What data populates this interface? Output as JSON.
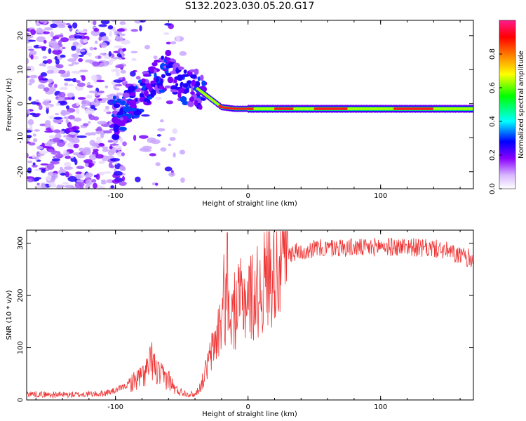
{
  "title": "S132.2023.030.05.20.G17",
  "chart_data": [
    {
      "type": "heatmap",
      "xlabel": "Height of straight line (km)",
      "ylabel": "Frequency (Hz)",
      "xlim": [
        -167,
        170
      ],
      "ylim": [
        -25,
        24.5
      ],
      "x_ticks": [
        -100,
        0,
        100
      ],
      "y_ticks": [
        -20,
        -10,
        0,
        10,
        20
      ],
      "description_points": {
        "ridge": [
          {
            "x": -100,
            "y": -5
          },
          {
            "x": -90,
            "y": -1
          },
          {
            "x": -80,
            "y": 3
          },
          {
            "x": -70,
            "y": 7
          },
          {
            "x": -60,
            "y": 10
          },
          {
            "x": -50,
            "y": 5
          },
          {
            "x": -40,
            "y": 5
          },
          {
            "x": -30,
            "y": 2
          },
          {
            "x": -20,
            "y": -1
          },
          {
            "x": -10,
            "y": -1.5
          },
          {
            "x": 0,
            "y": -1.5
          },
          {
            "x": 50,
            "y": -1.5
          },
          {
            "x": 100,
            "y": -1.5
          },
          {
            "x": 170,
            "y": -1.5
          }
        ]
      },
      "colorbar": {
        "label": "Normalized spectral amplitude",
        "range": [
          0,
          1
        ],
        "ticks": [
          "0.0",
          "0.2",
          "0.4",
          "0.6",
          "0.8"
        ]
      }
    },
    {
      "type": "line",
      "xlabel": "Height of straight line (km)",
      "ylabel": "SNR (10 * v/v)",
      "xlim": [
        -167,
        170
      ],
      "ylim": [
        0,
        325
      ],
      "x_ticks": [
        -100,
        0,
        100
      ],
      "y_ticks": [
        0,
        100,
        200,
        300
      ],
      "color": "#ee3333",
      "series": [
        {
          "x": [
            -167,
            -150,
            -130,
            -110,
            -100,
            -90,
            -80,
            -75,
            -72,
            -70,
            -65,
            -60,
            -55,
            -50,
            -45,
            -40,
            -35,
            -30,
            -25,
            -20,
            -18,
            -15,
            -10,
            -5,
            0,
            5,
            10,
            15,
            20,
            25,
            30,
            40,
            50,
            60,
            70,
            80,
            90,
            100,
            110,
            120,
            130,
            140,
            150,
            160,
            170
          ],
          "y": [
            12,
            10,
            10,
            12,
            18,
            30,
            45,
            60,
            80,
            55,
            45,
            40,
            20,
            15,
            12,
            10,
            30,
            70,
            110,
            150,
            200,
            150,
            170,
            190,
            200,
            200,
            215,
            240,
            260,
            272,
            280,
            285,
            290,
            290,
            292,
            292,
            290,
            295,
            292,
            295,
            290,
            290,
            285,
            275,
            270
          ]
        }
      ]
    }
  ]
}
